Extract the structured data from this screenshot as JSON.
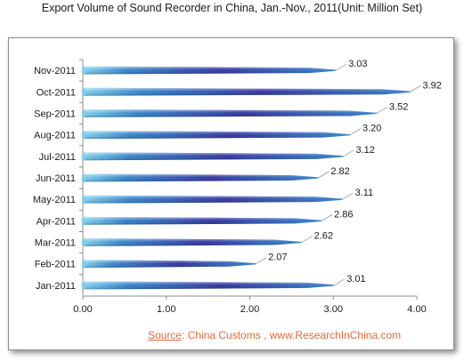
{
  "page": {
    "title": "Export Volume of Sound Recorder in China, Jan.-Nov., 2011(Unit:  Million Set)",
    "source_label": "Source",
    "source_text": ": China Customs , www.ResearchInChina.com"
  },
  "colors": {
    "bar_light": "#7ad0f0",
    "bar_mid": "#2f7fc8",
    "bar_dark": "#2a2e9a",
    "source_text": "#e06a3a"
  },
  "chart_data": {
    "type": "bar",
    "orientation": "horizontal",
    "title": "Export Volume of Sound Recorder in China, Jan.-Nov., 2011(Unit:  Million Set)",
    "categories": [
      "Jan-2011",
      "Feb-2011",
      "Mar-2011",
      "Apr-2011",
      "May-2011",
      "Jun-2011",
      "Jul-2011",
      "Aug-2011",
      "Sep-2011",
      "Oct-2011",
      "Nov-2011"
    ],
    "values": [
      3.01,
      2.07,
      2.62,
      2.86,
      3.11,
      2.82,
      3.12,
      3.2,
      3.52,
      3.92,
      3.03
    ],
    "value_labels": [
      "3.01",
      "2.07",
      "2.62",
      "2.86",
      "3.11",
      "2.82",
      "3.12",
      "3.20",
      "3.52",
      "3.92",
      "3.03"
    ],
    "xlim": [
      0,
      4
    ],
    "xticks": [
      0,
      1,
      2,
      3,
      4
    ],
    "xtick_labels": [
      "0.00",
      "1.00",
      "2.00",
      "3.00",
      "4.00"
    ],
    "grid": false,
    "legend": "none"
  }
}
